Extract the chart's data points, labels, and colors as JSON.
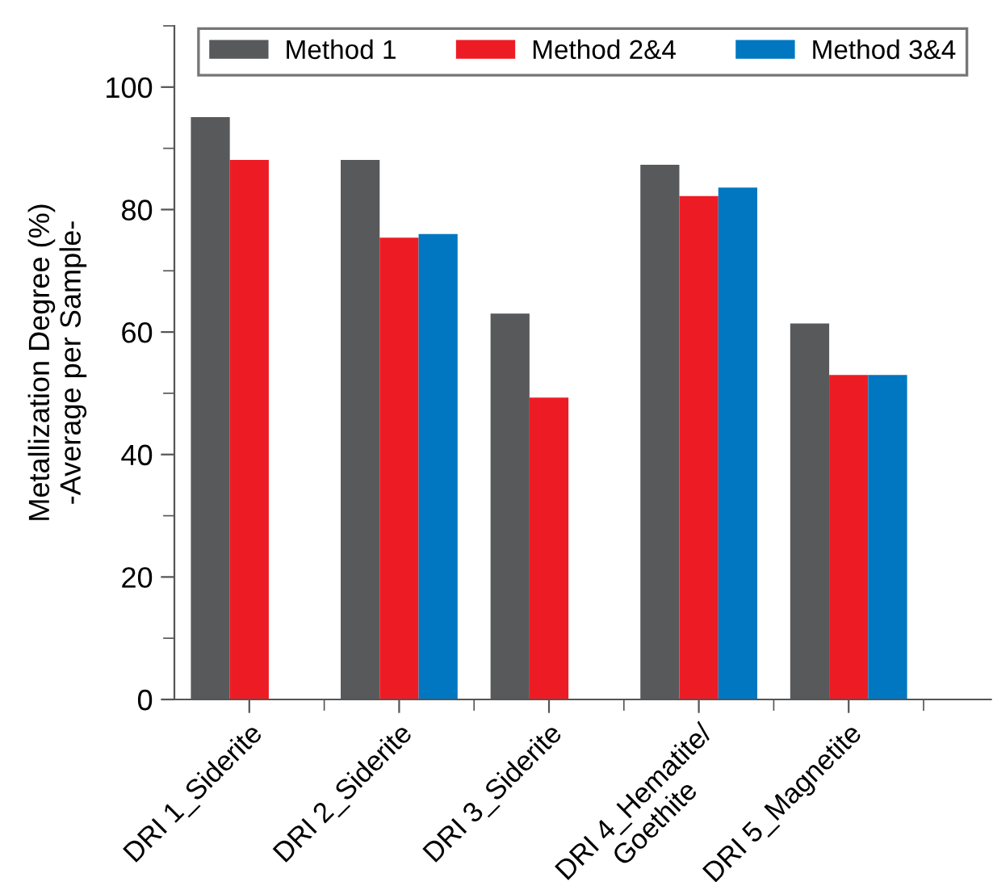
{
  "chart_data": {
    "type": "bar",
    "ylabel": "Metallization Degree (%)\n-Average per Sample-",
    "categories": [
      "DRI 1_Siderite",
      "DRI 2_Siderite",
      "DRI 3_Siderite",
      "DRI 4_Hematite/\nGoethite",
      "DRI 5_Magnetite"
    ],
    "series": [
      {
        "name": "Method 1",
        "color": "#58595b",
        "values": [
          95.1,
          88.1,
          63.0,
          87.3,
          61.4
        ]
      },
      {
        "name": "Method 2&4",
        "color": "#ed1c24",
        "values": [
          88.1,
          75.4,
          49.3,
          82.2,
          53.0
        ]
      },
      {
        "name": "Method 3&4",
        "color": "#0077c0",
        "values": [
          null,
          76.0,
          null,
          83.6,
          53.0
        ]
      }
    ],
    "ylim": [
      0,
      110
    ],
    "yticks": [
      0,
      20,
      40,
      60,
      80,
      100
    ],
    "grid": false,
    "legend": "top"
  }
}
